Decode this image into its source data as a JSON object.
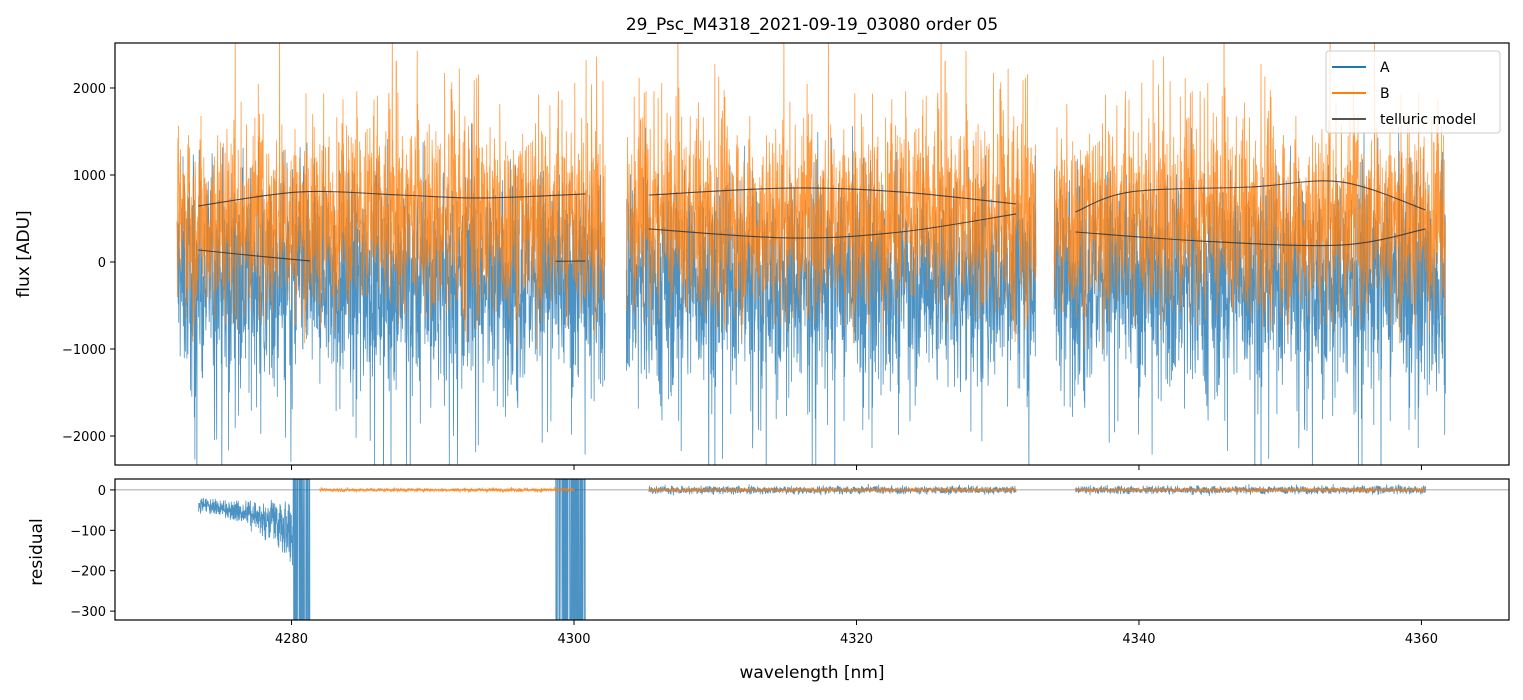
{
  "chart_data": {
    "type": "line",
    "title": "29_Psc_M4318_2021-09-19_03080  order 05",
    "xlabel": "wavelength [nm]",
    "xlim": [
      4267.5,
      4366.2
    ],
    "xticks": [
      4280,
      4300,
      4320,
      4340,
      4360
    ],
    "xtick_labels": [
      "4280",
      "4300",
      "4320",
      "4340",
      "4360"
    ],
    "panels": [
      {
        "name": "flux",
        "ylabel": "flux [ADU]",
        "ylim": [
          -2333,
          2517
        ],
        "yticks": [
          -2000,
          -1000,
          0,
          1000,
          2000
        ],
        "ytick_labels": [
          "−2000",
          "−1000",
          "0",
          "1000",
          "2000"
        ],
        "legend": {
          "placement": "top-right",
          "entries": [
            "A",
            "B",
            "telluric model"
          ]
        },
        "series": [
          {
            "name": "A",
            "color": "#1f77b4",
            "segments": [
              [
                4271.9,
                4302.2
              ],
              [
                4303.7,
                4332.7
              ],
              [
                4334.0,
                4361.7
              ]
            ],
            "noise_center": -150,
            "noise_spread": 1100
          },
          {
            "name": "B",
            "color": "#ff7f0e",
            "segments": [
              [
                4271.9,
                4302.2
              ],
              [
                4303.7,
                4332.7
              ],
              [
                4334.0,
                4361.7
              ]
            ],
            "noise_center": 450,
            "noise_spread": 1000
          },
          {
            "name": "telluric model",
            "color": "#333333",
            "curves": [
              [
                [
                  4273.4,
                  644
                ],
                [
                  4280.6,
                  805
                ],
                [
                  4287.7,
                  770
                ],
                [
                  4293.4,
                  736
                ],
                [
                  4300.8,
                  782
                ]
              ],
              [
                [
                  4273.4,
                  138
                ],
                [
                  4277.5,
                  70
                ],
                [
                  4281.3,
                  12
                ]
              ],
              [
                [
                  4298.7,
                  8
                ],
                [
                  4300.8,
                  12
                ]
              ],
              [
                [
                  4305.3,
                  770
                ],
                [
                  4315.3,
                  850
                ],
                [
                  4323.1,
                  805
                ],
                [
                  4331.3,
                  667
                ]
              ],
              [
                [
                  4305.3,
                  380
                ],
                [
                  4315.3,
                  276
                ],
                [
                  4323.1,
                  345
                ],
                [
                  4331.3,
                  552
                ]
              ],
              [
                [
                  4335.5,
                  575
                ],
                [
                  4339.4,
                  805
                ],
                [
                  4347.9,
                  862
                ],
                [
                  4354.3,
                  920
                ],
                [
                  4360.3,
                  598
                ]
              ],
              [
                [
                  4335.5,
                  345
                ],
                [
                  4344.4,
                  241
                ],
                [
                  4354.3,
                  195
                ],
                [
                  4360.3,
                  380
                ]
              ]
            ]
          }
        ]
      },
      {
        "name": "residual",
        "ylabel": "residual",
        "ylim": [
          -322,
          27
        ],
        "yticks": [
          -300,
          -200,
          -100,
          0
        ],
        "ytick_labels": [
          "−300",
          "−200",
          "−100",
          "0"
        ],
        "hline": 0,
        "series": [
          {
            "name": "A",
            "color": "#1f77b4",
            "segments": [
              [
                4273.4,
                4281.3
              ],
              [
                4298.7,
                4300.8
              ],
              [
                4305.3,
                4331.3
              ],
              [
                4335.5,
                4360.3
              ]
            ]
          },
          {
            "name": "B",
            "color": "#ff7f0e",
            "segments": [
              [
                4282.0,
                4300.0
              ],
              [
                4305.3,
                4331.3
              ],
              [
                4335.5,
                4360.3
              ]
            ]
          }
        ]
      }
    ]
  }
}
